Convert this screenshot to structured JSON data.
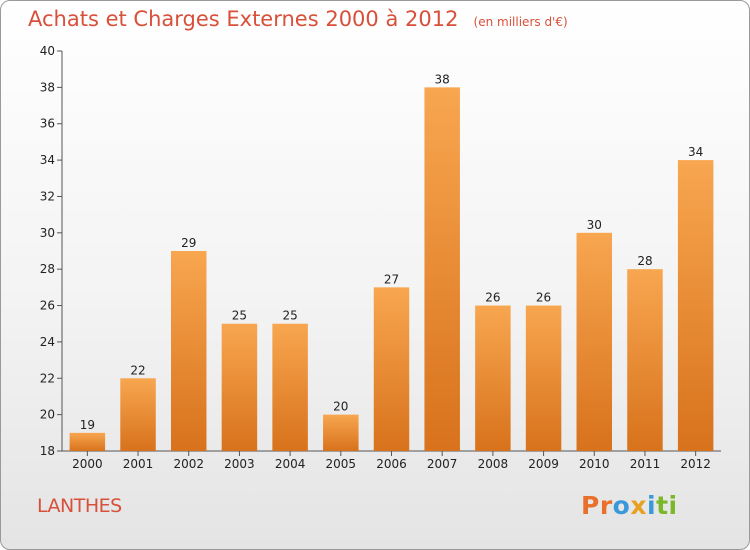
{
  "header": {
    "title": "Achats et Charges Externes 2000 à 2012",
    "unit": "(en milliers d'€)"
  },
  "footer": {
    "town": "LANTHES",
    "logo_letters": [
      {
        "ch": "P",
        "color": "#e8702a"
      },
      {
        "ch": "r",
        "color": "#e8702a"
      },
      {
        "ch": "o",
        "color": "#3a9ad9"
      },
      {
        "ch": "x",
        "color": "#e8a020"
      },
      {
        "ch": "i",
        "color": "#3a9ad9"
      },
      {
        "ch": "t",
        "color": "#7ab828"
      },
      {
        "ch": "i",
        "color": "#7ab828"
      }
    ]
  },
  "colors": {
    "title": "#d8503a",
    "bar_light": "#f8a650",
    "bar_dark": "#d8721c"
  },
  "chart_data": {
    "type": "bar",
    "title": "Achats et Charges Externes 2000 à 2012",
    "subtitle": "(en milliers d'€)",
    "categories": [
      "2000",
      "2001",
      "2002",
      "2003",
      "2004",
      "2005",
      "2006",
      "2007",
      "2008",
      "2009",
      "2010",
      "2011",
      "2012"
    ],
    "values": [
      19,
      22,
      29,
      25,
      25,
      20,
      27,
      38,
      26,
      26,
      30,
      28,
      34
    ],
    "data_labels": [
      "19",
      "22",
      "29",
      "25",
      "25",
      "20",
      "27",
      "38",
      "26",
      "26",
      "30",
      "28",
      "34"
    ],
    "ylim": [
      18,
      40
    ],
    "yticks": [
      18,
      20,
      22,
      24,
      26,
      28,
      30,
      32,
      34,
      36,
      38,
      40
    ],
    "grid": false,
    "xlabel": "",
    "ylabel": ""
  }
}
